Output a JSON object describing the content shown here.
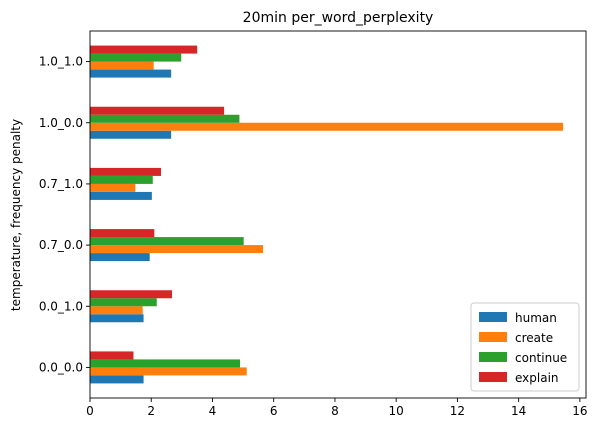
{
  "chart_data": {
    "type": "bar",
    "orientation": "horizontal",
    "title": "20min per_word_perplexity",
    "xlabel": "",
    "ylabel": "temperature, frequency penalty",
    "categories": [
      "0.0_0.0",
      "0.0_1.0",
      "0.7_0.0",
      "0.7_1.0",
      "1.0_0.0",
      "1.0_1.0"
    ],
    "series": [
      {
        "name": "human",
        "color": "#1f77b4",
        "values": [
          1.75,
          1.75,
          1.95,
          2.02,
          2.65,
          2.65
        ]
      },
      {
        "name": "create",
        "color": "#ff7f0e",
        "values": [
          5.12,
          1.72,
          5.65,
          1.48,
          15.45,
          2.08
        ]
      },
      {
        "name": "continue",
        "color": "#2ca02c",
        "values": [
          4.9,
          2.18,
          5.02,
          2.05,
          4.88,
          2.98
        ]
      },
      {
        "name": "explain",
        "color": "#d62728",
        "values": [
          1.42,
          2.68,
          2.1,
          2.32,
          4.38,
          3.5
        ]
      }
    ],
    "xlim": [
      0,
      16.2
    ],
    "xticks": [
      0,
      2,
      4,
      6,
      8,
      10,
      12,
      14,
      16
    ],
    "grid": false,
    "legend_position": "lower-right"
  }
}
